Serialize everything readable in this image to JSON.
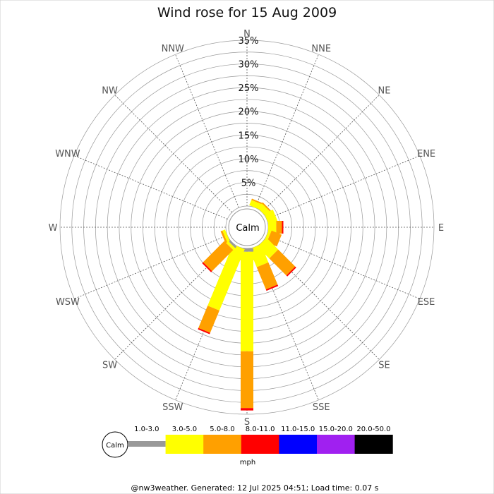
{
  "chart_data": {
    "type": "wind-rose",
    "title": "Wind rose for 15 Aug 2009",
    "directions": [
      "N",
      "NNE",
      "NE",
      "ENE",
      "E",
      "ESE",
      "SE",
      "SSE",
      "S",
      "SSW",
      "SW",
      "WSW",
      "W",
      "WNW",
      "NW",
      "NNW"
    ],
    "radial_ticks": [
      "5%",
      "10%",
      "15%",
      "20%",
      "25%",
      "30%",
      "35%"
    ],
    "radial_max": 35,
    "calm_label": "Calm",
    "units": "mph",
    "speed_bins": [
      {
        "label": "1.0-3.0",
        "color": "#999999"
      },
      {
        "label": "3.0-5.0",
        "color": "#ffff00"
      },
      {
        "label": "5.0-8.0",
        "color": "#ffa000"
      },
      {
        "label": "8.0-11.0",
        "color": "#ff0000"
      },
      {
        "label": "11.0-15.0",
        "color": "#0000ff"
      },
      {
        "label": "15.0-20.0",
        "color": "#a020f0"
      },
      {
        "label": "20.0-50.0",
        "color": "#000000"
      }
    ],
    "series": [
      {
        "direction": "N",
        "values": [
          0,
          0,
          0,
          0,
          0,
          0,
          0
        ]
      },
      {
        "direction": "NNE",
        "values": [
          0,
          1.2,
          0.3,
          0,
          0,
          0,
          0
        ]
      },
      {
        "direction": "NE",
        "values": [
          0,
          1.3,
          0.3,
          0,
          0,
          0,
          0
        ]
      },
      {
        "direction": "ENE",
        "values": [
          0,
          2.0,
          0,
          0,
          0,
          0,
          0
        ]
      },
      {
        "direction": "E",
        "values": [
          0,
          1.7,
          1.2,
          0.3,
          0,
          0,
          0
        ]
      },
      {
        "direction": "ESE",
        "values": [
          0,
          0.6,
          2.3,
          0,
          0,
          0,
          0
        ]
      },
      {
        "direction": "SE",
        "values": [
          0,
          3.5,
          5.1,
          0.3,
          0,
          0,
          0
        ]
      },
      {
        "direction": "SSE",
        "values": [
          0,
          4.1,
          5.1,
          0.3,
          0,
          0,
          0
        ]
      },
      {
        "direction": "S",
        "values": [
          0.7,
          21.0,
          12.0,
          0.5,
          0,
          0,
          0
        ]
      },
      {
        "direction": "SSW",
        "values": [
          0,
          14.0,
          5.1,
          0.3,
          0,
          0,
          0
        ]
      },
      {
        "direction": "SW",
        "values": [
          0.4,
          0.6,
          6.3,
          0.3,
          0,
          0,
          0
        ]
      },
      {
        "direction": "WSW",
        "values": [
          0,
          0.6,
          0.4,
          0,
          0,
          0,
          0
        ]
      },
      {
        "direction": "W",
        "values": [
          0,
          0,
          0,
          0,
          0,
          0,
          0
        ]
      },
      {
        "direction": "WNW",
        "values": [
          0,
          0,
          0,
          0,
          0,
          0,
          0
        ]
      },
      {
        "direction": "NW",
        "values": [
          0,
          0,
          0,
          0,
          0,
          0,
          0
        ]
      },
      {
        "direction": "NNW",
        "values": [
          0,
          0,
          0,
          0,
          0,
          0,
          0
        ]
      }
    ],
    "footer": "@nw3weather. Generated: 12 Jul 2025 04:51; Load time: 0.07 s"
  }
}
